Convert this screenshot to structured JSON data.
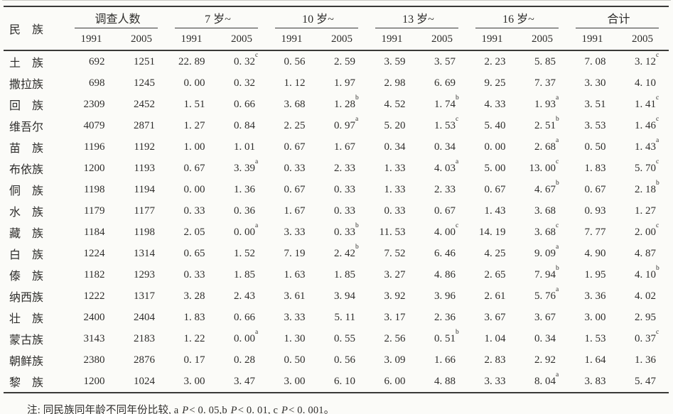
{
  "table": {
    "row_header_label": "民　族",
    "col_groups": [
      {
        "label": "调查人数",
        "years": [
          "1991",
          "2005"
        ]
      },
      {
        "label": "7 岁~",
        "years": [
          "1991",
          "2005"
        ]
      },
      {
        "label": "10 岁~",
        "years": [
          "1991",
          "2005"
        ]
      },
      {
        "label": "13 岁~",
        "years": [
          "1991",
          "2005"
        ]
      },
      {
        "label": "16 岁~",
        "years": [
          "1991",
          "2005"
        ]
      },
      {
        "label": "合计",
        "years": [
          "1991",
          "2005"
        ]
      }
    ],
    "rows": [
      {
        "ethnicity": "土　族",
        "cells": [
          {
            "v": "692"
          },
          {
            "v": "1251"
          },
          {
            "v": "22. 89"
          },
          {
            "v": "0. 32",
            "sup": "c"
          },
          {
            "v": "0. 56"
          },
          {
            "v": "2. 59"
          },
          {
            "v": "3. 59"
          },
          {
            "v": "3. 57"
          },
          {
            "v": "2. 23"
          },
          {
            "v": "5. 85"
          },
          {
            "v": "7. 08"
          },
          {
            "v": "3. 12",
            "sup": "c"
          }
        ]
      },
      {
        "ethnicity": "撒拉族",
        "cells": [
          {
            "v": "698"
          },
          {
            "v": "1245"
          },
          {
            "v": "0. 00"
          },
          {
            "v": "0. 32"
          },
          {
            "v": "1. 12"
          },
          {
            "v": "1. 97"
          },
          {
            "v": "2. 98"
          },
          {
            "v": "6. 69"
          },
          {
            "v": "9. 25"
          },
          {
            "v": "7. 37"
          },
          {
            "v": "3. 30"
          },
          {
            "v": "4. 10"
          }
        ]
      },
      {
        "ethnicity": "回　族",
        "cells": [
          {
            "v": "2309"
          },
          {
            "v": "2452"
          },
          {
            "v": "1. 51"
          },
          {
            "v": "0. 66"
          },
          {
            "v": "3. 68"
          },
          {
            "v": "1. 28",
            "sup": "b"
          },
          {
            "v": "4. 52"
          },
          {
            "v": "1. 74",
            "sup": "b"
          },
          {
            "v": "4. 33"
          },
          {
            "v": "1. 93",
            "sup": "a"
          },
          {
            "v": "3. 51"
          },
          {
            "v": "1. 41",
            "sup": "c"
          }
        ]
      },
      {
        "ethnicity": "维吾尔",
        "cells": [
          {
            "v": "4079"
          },
          {
            "v": "2871"
          },
          {
            "v": "1. 27"
          },
          {
            "v": "0. 84"
          },
          {
            "v": "2. 25"
          },
          {
            "v": "0. 97",
            "sup": "a"
          },
          {
            "v": "5. 20"
          },
          {
            "v": "1. 53",
            "sup": "c"
          },
          {
            "v": "5. 40"
          },
          {
            "v": "2. 51",
            "sup": "b"
          },
          {
            "v": "3. 53"
          },
          {
            "v": "1. 46",
            "sup": "c"
          }
        ]
      },
      {
        "ethnicity": "苗　族",
        "cells": [
          {
            "v": "1196"
          },
          {
            "v": "1192"
          },
          {
            "v": "1. 00"
          },
          {
            "v": "1. 01"
          },
          {
            "v": "0. 67"
          },
          {
            "v": "1. 67"
          },
          {
            "v": "0. 34"
          },
          {
            "v": "0. 34"
          },
          {
            "v": "0. 00"
          },
          {
            "v": "2. 68",
            "sup": "a"
          },
          {
            "v": "0. 50"
          },
          {
            "v": "1. 43",
            "sup": "a"
          }
        ]
      },
      {
        "ethnicity": "布依族",
        "cells": [
          {
            "v": "1200"
          },
          {
            "v": "1193"
          },
          {
            "v": "0. 67"
          },
          {
            "v": "3. 39",
            "sup": "a"
          },
          {
            "v": "0. 33"
          },
          {
            "v": "2. 33"
          },
          {
            "v": "1. 33"
          },
          {
            "v": "4. 03",
            "sup": "a"
          },
          {
            "v": "5. 00"
          },
          {
            "v": "13. 00",
            "sup": "c"
          },
          {
            "v": "1. 83"
          },
          {
            "v": "5. 70",
            "sup": "c"
          }
        ]
      },
      {
        "ethnicity": "侗　族",
        "cells": [
          {
            "v": "1198"
          },
          {
            "v": "1194"
          },
          {
            "v": "0. 00"
          },
          {
            "v": "1. 36"
          },
          {
            "v": "0. 67"
          },
          {
            "v": "0. 33"
          },
          {
            "v": "1. 33"
          },
          {
            "v": "2. 33"
          },
          {
            "v": "0. 67"
          },
          {
            "v": "4. 67",
            "sup": "b"
          },
          {
            "v": "0. 67"
          },
          {
            "v": "2. 18",
            "sup": "b"
          }
        ]
      },
      {
        "ethnicity": "水　族",
        "cells": [
          {
            "v": "1179"
          },
          {
            "v": "1177"
          },
          {
            "v": "0. 33"
          },
          {
            "v": "0. 36"
          },
          {
            "v": "1. 67"
          },
          {
            "v": "0. 33"
          },
          {
            "v": "0. 33"
          },
          {
            "v": "0. 67"
          },
          {
            "v": "1. 43"
          },
          {
            "v": "3. 68"
          },
          {
            "v": "0. 93"
          },
          {
            "v": "1. 27"
          }
        ]
      },
      {
        "ethnicity": "藏　族",
        "cells": [
          {
            "v": "1184"
          },
          {
            "v": "1198"
          },
          {
            "v": "2. 05"
          },
          {
            "v": "0. 00",
            "sup": "a"
          },
          {
            "v": "3. 33"
          },
          {
            "v": "0. 33",
            "sup": "b"
          },
          {
            "v": "11. 53"
          },
          {
            "v": "4. 00",
            "sup": "c"
          },
          {
            "v": "14. 19"
          },
          {
            "v": "3. 68",
            "sup": "c"
          },
          {
            "v": "7. 77"
          },
          {
            "v": "2. 00",
            "sup": "c"
          }
        ]
      },
      {
        "ethnicity": "白　族",
        "cells": [
          {
            "v": "1224"
          },
          {
            "v": "1314"
          },
          {
            "v": "0. 65"
          },
          {
            "v": "1. 52"
          },
          {
            "v": "7. 19"
          },
          {
            "v": "2. 42",
            "sup": "b"
          },
          {
            "v": "7. 52"
          },
          {
            "v": "6. 46"
          },
          {
            "v": "4. 25"
          },
          {
            "v": "9. 09",
            "sup": "a"
          },
          {
            "v": "4. 90"
          },
          {
            "v": "4. 87"
          }
        ]
      },
      {
        "ethnicity": "傣　族",
        "cells": [
          {
            "v": "1182"
          },
          {
            "v": "1293"
          },
          {
            "v": "0. 33"
          },
          {
            "v": "1. 85"
          },
          {
            "v": "1. 63"
          },
          {
            "v": "1. 85"
          },
          {
            "v": "3. 27"
          },
          {
            "v": "4. 86"
          },
          {
            "v": "2. 65"
          },
          {
            "v": "7. 94",
            "sup": "b"
          },
          {
            "v": "1. 95"
          },
          {
            "v": "4. 10",
            "sup": "b"
          }
        ]
      },
      {
        "ethnicity": "纳西族",
        "cells": [
          {
            "v": "1222"
          },
          {
            "v": "1317"
          },
          {
            "v": "3. 28"
          },
          {
            "v": "2. 43"
          },
          {
            "v": "3. 61"
          },
          {
            "v": "3. 94"
          },
          {
            "v": "3. 92"
          },
          {
            "v": "3. 96"
          },
          {
            "v": "2. 61"
          },
          {
            "v": "5. 76",
            "sup": "a"
          },
          {
            "v": "3. 36"
          },
          {
            "v": "4. 02"
          }
        ]
      },
      {
        "ethnicity": "壮　族",
        "cells": [
          {
            "v": "2400"
          },
          {
            "v": "2404"
          },
          {
            "v": "1. 83"
          },
          {
            "v": "0. 66"
          },
          {
            "v": "3. 33"
          },
          {
            "v": "5. 11"
          },
          {
            "v": "3. 17"
          },
          {
            "v": "2. 36"
          },
          {
            "v": "3. 67"
          },
          {
            "v": "3. 67"
          },
          {
            "v": "3. 00"
          },
          {
            "v": "2. 95"
          }
        ]
      },
      {
        "ethnicity": "蒙古族",
        "cells": [
          {
            "v": "3143"
          },
          {
            "v": "2183"
          },
          {
            "v": "1. 22"
          },
          {
            "v": "0. 00",
            "sup": "a"
          },
          {
            "v": "1. 30"
          },
          {
            "v": "0. 55"
          },
          {
            "v": "2. 56"
          },
          {
            "v": "0. 51",
            "sup": "b"
          },
          {
            "v": "1. 04"
          },
          {
            "v": "0. 34"
          },
          {
            "v": "1. 53"
          },
          {
            "v": "0. 37",
            "sup": "c"
          }
        ]
      },
      {
        "ethnicity": "朝鲜族",
        "cells": [
          {
            "v": "2380"
          },
          {
            "v": "2876"
          },
          {
            "v": "0. 17"
          },
          {
            "v": "0. 28"
          },
          {
            "v": "0. 50"
          },
          {
            "v": "0. 56"
          },
          {
            "v": "3. 09"
          },
          {
            "v": "1. 66"
          },
          {
            "v": "2. 83"
          },
          {
            "v": "2. 92"
          },
          {
            "v": "1. 64"
          },
          {
            "v": "1. 36"
          }
        ]
      },
      {
        "ethnicity": "黎　族",
        "cells": [
          {
            "v": "1200"
          },
          {
            "v": "1024"
          },
          {
            "v": "3. 00"
          },
          {
            "v": "3. 47"
          },
          {
            "v": "3. 00"
          },
          {
            "v": "6. 10"
          },
          {
            "v": "6. 00"
          },
          {
            "v": "4. 88"
          },
          {
            "v": "3. 33"
          },
          {
            "v": "8. 04",
            "sup": "a"
          },
          {
            "v": "3. 83"
          },
          {
            "v": "5. 47"
          }
        ]
      }
    ]
  },
  "note": {
    "segments": [
      {
        "t": "注: 同民族同年龄不同年份比较, a "
      },
      {
        "t": "P",
        "i": true
      },
      {
        "t": "< 0. 05,b "
      },
      {
        "t": "P",
        "i": true
      },
      {
        "t": "< 0. 01, c "
      },
      {
        "t": "P",
        "i": true
      },
      {
        "t": "< 0. 001。"
      }
    ]
  }
}
